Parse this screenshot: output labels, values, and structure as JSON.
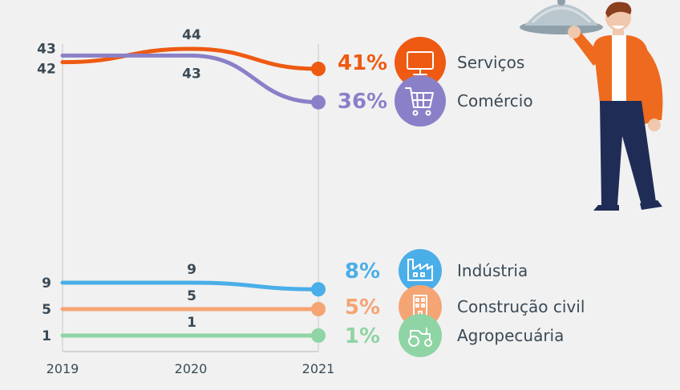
{
  "chart_data": {
    "type": "line",
    "x": [
      "2019",
      "2020",
      "2021"
    ],
    "series": [
      {
        "name": "Serviços",
        "values": [
          42,
          44,
          41
        ],
        "value_labels": [
          "42",
          "44",
          ""
        ],
        "final_label": "41%",
        "color": "#ee5a12",
        "icon": "monitor-icon"
      },
      {
        "name": "Comércio",
        "values": [
          43,
          43,
          36
        ],
        "value_labels": [
          "43",
          "43",
          ""
        ],
        "final_label": "36%",
        "color": "#8a80c8",
        "icon": "shopping-cart-icon"
      },
      {
        "name": "Indústria",
        "values": [
          9,
          9,
          8
        ],
        "value_labels": [
          "9",
          "9",
          ""
        ],
        "final_label": "8%",
        "color": "#4aaee8",
        "icon": "factory-icon"
      },
      {
        "name": "Construção civil",
        "values": [
          5,
          5,
          5
        ],
        "value_labels": [
          "5",
          "5",
          ""
        ],
        "final_label": "5%",
        "color": "#f5a473",
        "icon": "building-icon"
      },
      {
        "name": "Agropecuária",
        "values": [
          1,
          1,
          1
        ],
        "value_labels": [
          "1",
          "1",
          ""
        ],
        "final_label": "1%",
        "color": "#8fd4a4",
        "icon": "tractor-icon"
      }
    ],
    "title": "",
    "xlabel": "",
    "ylabel": "",
    "grid": "vertical lines at 2019 and 2021"
  }
}
